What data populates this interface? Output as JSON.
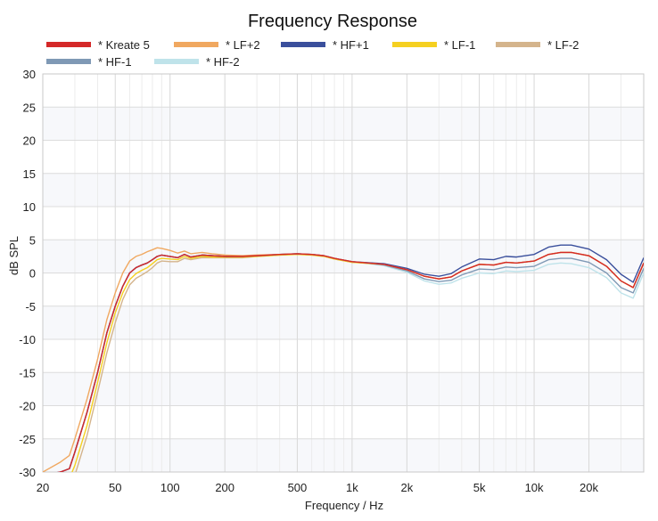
{
  "chart_data": {
    "type": "line",
    "title": "Frequency Response",
    "xlabel": "Frequency / Hz",
    "ylabel": "dB SPL",
    "x_scale": "log",
    "xlim": [
      20,
      40000
    ],
    "ylim": [
      -30,
      30
    ],
    "grid": true,
    "legend_position": "top",
    "x_ticks": [
      {
        "value": 20,
        "label": "20"
      },
      {
        "value": 50,
        "label": "50"
      },
      {
        "value": 100,
        "label": "100"
      },
      {
        "value": 200,
        "label": "200"
      },
      {
        "value": 500,
        "label": "500"
      },
      {
        "value": 1000,
        "label": "1k"
      },
      {
        "value": 2000,
        "label": "2k"
      },
      {
        "value": 5000,
        "label": "5k"
      },
      {
        "value": 10000,
        "label": "10k"
      },
      {
        "value": 20000,
        "label": "20k"
      }
    ],
    "y_ticks": [
      30,
      25,
      20,
      15,
      10,
      5,
      0,
      -5,
      -10,
      -15,
      -20,
      -25,
      -30
    ],
    "series": [
      {
        "name": "* Kreate 5",
        "color": "#d42828",
        "x": [
          20,
          25,
          28,
          30,
          35,
          40,
          45,
          50,
          55,
          60,
          65,
          70,
          75,
          80,
          85,
          90,
          100,
          110,
          120,
          130,
          150,
          170,
          200,
          250,
          300,
          400,
          500,
          600,
          700,
          800,
          1000,
          1500,
          2000,
          2500,
          3000,
          3500,
          4000,
          5000,
          6000,
          7000,
          8000,
          10000,
          12000,
          14000,
          16000,
          20000,
          25000,
          30000,
          35000,
          40000
        ],
        "y": [
          -30.5,
          -30,
          -29.5,
          -27,
          -21,
          -15,
          -9,
          -5,
          -2,
          0,
          0.8,
          1.2,
          1.5,
          2,
          2.5,
          2.7,
          2.5,
          2.3,
          2.8,
          2.4,
          2.7,
          2.6,
          2.5,
          2.5,
          2.6,
          2.8,
          2.9,
          2.8,
          2.6,
          2.2,
          1.7,
          1.3,
          0.5,
          -0.5,
          -0.9,
          -0.6,
          0.3,
          1.3,
          1.2,
          1.6,
          1.5,
          1.8,
          2.8,
          3.1,
          3.1,
          2.6,
          1.0,
          -1.2,
          -2.2,
          1.5
        ]
      },
      {
        "name": "* LF+2",
        "color": "#f0a860",
        "x": [
          20,
          25,
          28,
          30,
          35,
          40,
          45,
          50,
          55,
          60,
          65,
          70,
          75,
          80,
          85,
          90,
          100,
          110,
          120,
          130,
          150,
          170,
          200,
          250,
          300,
          400,
          500,
          600,
          700,
          800,
          1000,
          1500,
          2000,
          2500,
          3000,
          3500,
          4000,
          5000,
          6000,
          7000,
          8000,
          10000,
          12000,
          14000,
          16000,
          20000,
          25000,
          30000,
          35000,
          40000
        ],
        "y": [
          -30,
          -28.5,
          -27.5,
          -25,
          -19,
          -13,
          -7,
          -3,
          0,
          1.8,
          2.5,
          2.8,
          3.2,
          3.5,
          3.8,
          3.7,
          3.4,
          3.0,
          3.3,
          2.9,
          3.1,
          2.9,
          2.7,
          2.6,
          2.7,
          2.8,
          2.9,
          2.8,
          2.6,
          2.2,
          1.7,
          1.3,
          0.5,
          -0.5,
          -0.9,
          -0.6,
          0.3,
          1.3,
          1.2,
          1.6,
          1.5,
          1.8,
          2.8,
          3.1,
          3.1,
          2.6,
          1.0,
          -1.2,
          -2.2,
          1.5
        ]
      },
      {
        "name": "* HF+1",
        "color": "#3a4f9c",
        "x": [
          20,
          25,
          28,
          30,
          35,
          40,
          45,
          50,
          55,
          60,
          65,
          70,
          75,
          80,
          85,
          90,
          100,
          110,
          120,
          130,
          150,
          170,
          200,
          250,
          300,
          400,
          500,
          600,
          700,
          800,
          1000,
          1500,
          2000,
          2500,
          3000,
          3500,
          4000,
          5000,
          6000,
          7000,
          8000,
          10000,
          12000,
          14000,
          16000,
          20000,
          25000,
          30000,
          35000,
          40000
        ],
        "y": [
          -30.5,
          -30,
          -29.5,
          -27,
          -21,
          -15,
          -9,
          -5,
          -2,
          0,
          0.8,
          1.2,
          1.5,
          2,
          2.5,
          2.7,
          2.5,
          2.3,
          2.8,
          2.4,
          2.7,
          2.6,
          2.5,
          2.5,
          2.6,
          2.8,
          2.9,
          2.8,
          2.6,
          2.2,
          1.7,
          1.4,
          0.7,
          -0.2,
          -0.5,
          -0.1,
          0.9,
          2.1,
          2.0,
          2.5,
          2.4,
          2.8,
          3.9,
          4.2,
          4.2,
          3.6,
          2.0,
          -0.2,
          -1.4,
          2.3
        ]
      },
      {
        "name": "* LF-1",
        "color": "#f5d020",
        "x": [
          20,
          25,
          28,
          30,
          35,
          40,
          45,
          50,
          55,
          60,
          65,
          70,
          75,
          80,
          85,
          90,
          100,
          110,
          120,
          130,
          150,
          170,
          200,
          250,
          300,
          400,
          500,
          600,
          700,
          800,
          1000,
          1500,
          2000,
          2500,
          3000,
          3500,
          4000,
          5000,
          6000,
          7000,
          8000,
          10000,
          12000,
          14000,
          16000,
          20000,
          25000,
          30000,
          35000,
          40000
        ],
        "y": [
          -31,
          -31,
          -31,
          -29,
          -23,
          -16.5,
          -10.5,
          -6,
          -3,
          -1,
          -0.1,
          0.4,
          0.8,
          1.4,
          2.0,
          2.2,
          2.1,
          2.0,
          2.5,
          2.2,
          2.5,
          2.4,
          2.4,
          2.4,
          2.5,
          2.7,
          2.8,
          2.7,
          2.5,
          2.1,
          1.6,
          1.3,
          0.5,
          -0.5,
          -0.9,
          -0.6,
          0.3,
          1.3,
          1.2,
          1.6,
          1.5,
          1.8,
          2.8,
          3.1,
          3.1,
          2.6,
          1.0,
          -1.2,
          -2.2,
          1.5
        ]
      },
      {
        "name": "* LF-2",
        "color": "#d4b48c",
        "x": [
          20,
          25,
          28,
          30,
          35,
          40,
          45,
          50,
          55,
          60,
          65,
          70,
          75,
          80,
          85,
          90,
          100,
          110,
          120,
          130,
          150,
          170,
          200,
          250,
          300,
          400,
          500,
          600,
          700,
          800,
          1000,
          1500,
          2000,
          2500,
          3000,
          3500,
          4000,
          5000,
          6000,
          7000,
          8000,
          10000,
          12000,
          14000,
          16000,
          20000,
          25000,
          30000,
          35000,
          40000
        ],
        "y": [
          -32,
          -32,
          -32,
          -30.5,
          -24.5,
          -18,
          -12,
          -7.5,
          -4,
          -1.8,
          -0.8,
          -0.3,
          0.2,
          0.8,
          1.5,
          1.8,
          1.7,
          1.7,
          2.2,
          2.0,
          2.3,
          2.3,
          2.3,
          2.3,
          2.5,
          2.7,
          2.8,
          2.7,
          2.5,
          2.1,
          1.6,
          1.3,
          0.5,
          -0.5,
          -0.9,
          -0.6,
          0.3,
          1.3,
          1.2,
          1.6,
          1.5,
          1.8,
          2.8,
          3.1,
          3.1,
          2.6,
          1.0,
          -1.2,
          -2.2,
          1.5
        ]
      },
      {
        "name": "* HF-1",
        "color": "#7f99b5",
        "x": [
          20,
          25,
          28,
          30,
          35,
          40,
          45,
          50,
          55,
          60,
          65,
          70,
          75,
          80,
          85,
          90,
          100,
          110,
          120,
          130,
          150,
          170,
          200,
          250,
          300,
          400,
          500,
          600,
          700,
          800,
          1000,
          1500,
          2000,
          2500,
          3000,
          3500,
          4000,
          5000,
          6000,
          7000,
          8000,
          10000,
          12000,
          14000,
          16000,
          20000,
          25000,
          30000,
          35000,
          40000
        ],
        "y": [
          -30.5,
          -30,
          -29.5,
          -27,
          -21,
          -15,
          -9,
          -5,
          -2,
          0,
          0.8,
          1.2,
          1.5,
          2,
          2.5,
          2.7,
          2.5,
          2.3,
          2.8,
          2.4,
          2.7,
          2.6,
          2.5,
          2.5,
          2.6,
          2.8,
          2.9,
          2.8,
          2.6,
          2.2,
          1.7,
          1.2,
          0.3,
          -0.9,
          -1.3,
          -1.1,
          -0.3,
          0.6,
          0.5,
          0.9,
          0.8,
          1.0,
          2.0,
          2.2,
          2.2,
          1.6,
          0.0,
          -2.2,
          -3.0,
          0.7
        ]
      },
      {
        "name": "* HF-2",
        "color": "#bfe3ea",
        "x": [
          20,
          25,
          28,
          30,
          35,
          40,
          45,
          50,
          55,
          60,
          65,
          70,
          75,
          80,
          85,
          90,
          100,
          110,
          120,
          130,
          150,
          170,
          200,
          250,
          300,
          400,
          500,
          600,
          700,
          800,
          1000,
          1500,
          2000,
          2500,
          3000,
          3500,
          4000,
          5000,
          6000,
          7000,
          8000,
          10000,
          12000,
          14000,
          16000,
          20000,
          25000,
          30000,
          35000,
          40000
        ],
        "y": [
          -30.5,
          -30,
          -29.5,
          -27,
          -21,
          -15,
          -9,
          -5,
          -2,
          0,
          0.8,
          1.2,
          1.5,
          2,
          2.5,
          2.7,
          2.5,
          2.3,
          2.8,
          2.4,
          2.7,
          2.6,
          2.5,
          2.5,
          2.6,
          2.8,
          2.9,
          2.8,
          2.6,
          2.2,
          1.7,
          1.1,
          0.1,
          -1.2,
          -1.7,
          -1.5,
          -0.8,
          0.0,
          -0.1,
          0.3,
          0.2,
          0.4,
          1.3,
          1.5,
          1.4,
          0.8,
          -0.7,
          -3.0,
          -3.8,
          0.0
        ]
      }
    ]
  }
}
